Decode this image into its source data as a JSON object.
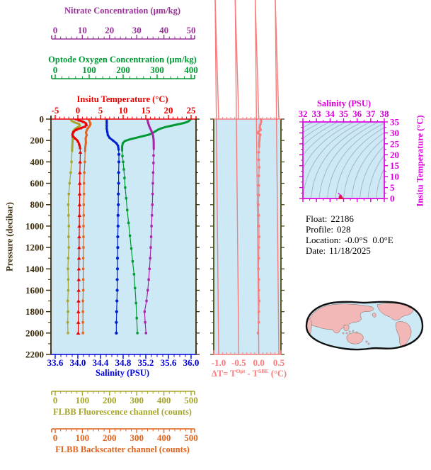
{
  "info": {
    "rows": [
      {
        "label": "Float:",
        "value": "22186"
      },
      {
        "label": "Profile:",
        "value": "028"
      },
      {
        "label": "Location:",
        "value": "-0.0°S  0.0°E"
      },
      {
        "label": "Date:",
        "value": "11/18/2025"
      }
    ]
  },
  "colors": {
    "plot_bg": "#CDE9F6",
    "frame_dark": "#3A2A08",
    "delta_side": "#4A4A10",
    "contour": "#9FB3BC",
    "map_land": "#F2B7B7",
    "map_outline": "#111111",
    "ts_marker": "#E8104C"
  },
  "chart_data": {
    "type": "line",
    "pressure_axis": {
      "label": "Pressure (decibar)",
      "min": 0,
      "max": 2200,
      "ticks": [
        0,
        200,
        400,
        600,
        800,
        1000,
        1200,
        1400,
        1600,
        1800,
        2000,
        2200
      ],
      "color": "#3A2A08"
    },
    "x_axes": [
      {
        "id": "nitrate",
        "title": "Nitrate Concentration (µm/kg)",
        "min": 0,
        "max": 50,
        "ticks": [
          0,
          10,
          20,
          30,
          40,
          50
        ],
        "tick_labels": [
          "0",
          "10",
          "20",
          "30",
          "40",
          "50"
        ],
        "minors": 4,
        "color": "#993399"
      },
      {
        "id": "oxygen",
        "title": "Optode Oxygen Concentration (µm/kg)",
        "min": 0,
        "max": 400,
        "ticks": [
          0,
          100,
          200,
          300,
          400
        ],
        "tick_labels": [
          "0",
          "100",
          "200",
          "300",
          "400"
        ],
        "minors": 4,
        "color": "#009933"
      },
      {
        "id": "temperature",
        "title": "Insitu Temperature (°C)",
        "min": -5,
        "max": 25,
        "ticks": [
          -5,
          0,
          5,
          10,
          15,
          20,
          25
        ],
        "tick_labels": [
          "-5",
          "0",
          "5",
          "10",
          "15",
          "20",
          "25"
        ],
        "minors": 4,
        "color": "#EE0000"
      },
      {
        "id": "salinity",
        "title": "Salinity (PSU)",
        "min": 33.6,
        "max": 36.0,
        "ticks": [
          33.6,
          34.0,
          34.4,
          34.8,
          35.2,
          35.6,
          36.0
        ],
        "tick_labels": [
          "33.6",
          "34.0",
          "34.4",
          "34.8",
          "35.2",
          "35.6",
          "36.0"
        ],
        "minors": 3,
        "color": "#0000DD"
      },
      {
        "id": "fluorescence",
        "title": "FLBB Fluorescence channel (counts)",
        "min": 0,
        "max": 500,
        "ticks": [
          0,
          100,
          200,
          300,
          400,
          500
        ],
        "tick_labels": [
          "0",
          "100",
          "200",
          "300",
          "400",
          "500"
        ],
        "minors": 4,
        "color": "#A5A52A"
      },
      {
        "id": "backscatter",
        "title": "FLBB Backscatter channel (counts)",
        "min": 0,
        "max": 500,
        "ticks": [
          0,
          100,
          200,
          300,
          400,
          500
        ],
        "tick_labels": [
          "0",
          "100",
          "200",
          "300",
          "400",
          "500"
        ],
        "minors": 4,
        "color": "#E2641E"
      }
    ],
    "series": [
      {
        "id": "fluorescence",
        "axis": "fluorescence",
        "color": "#A5A52A",
        "marker": "square",
        "units": "counts",
        "points": [
          [
            57,
            0
          ],
          [
            60,
            15
          ],
          [
            70,
            30
          ],
          [
            88,
            45
          ],
          [
            91,
            60
          ],
          [
            83,
            75
          ],
          [
            72,
            95
          ],
          [
            66,
            115
          ],
          [
            64,
            150
          ],
          [
            64,
            200
          ],
          [
            63,
            250
          ],
          [
            62,
            300
          ],
          [
            60,
            400
          ],
          [
            57,
            500
          ],
          [
            53,
            600
          ],
          [
            50,
            700
          ],
          [
            48,
            800
          ],
          [
            49,
            900
          ],
          [
            50,
            1000
          ],
          [
            49,
            1100
          ],
          [
            50,
            1200
          ],
          [
            48,
            1300
          ],
          [
            47,
            1400
          ],
          [
            48,
            1500
          ],
          [
            48,
            1600
          ],
          [
            46,
            1700
          ],
          [
            47,
            1800
          ],
          [
            46,
            1900
          ],
          [
            47,
            2000
          ]
        ]
      },
      {
        "id": "backscatter",
        "axis": "backscatter",
        "color": "#E2641E",
        "marker": "square",
        "units": "counts",
        "points": [
          [
            122,
            0
          ],
          [
            126,
            20
          ],
          [
            130,
            40
          ],
          [
            128,
            60
          ],
          [
            122,
            80
          ],
          [
            117,
            100
          ],
          [
            113,
            125
          ],
          [
            116,
            150
          ],
          [
            112,
            180
          ],
          [
            113,
            220
          ],
          [
            111,
            260
          ],
          [
            110,
            300
          ],
          [
            109,
            400
          ],
          [
            107,
            500
          ],
          [
            106,
            600
          ],
          [
            106,
            700
          ],
          [
            105,
            800
          ],
          [
            105,
            900
          ],
          [
            104,
            1000
          ],
          [
            104,
            1100
          ],
          [
            104,
            1200
          ],
          [
            103,
            1300
          ],
          [
            103,
            1400
          ],
          [
            103,
            1500
          ],
          [
            103,
            1600
          ],
          [
            102,
            1700
          ],
          [
            102,
            1800
          ],
          [
            102,
            1900
          ],
          [
            102,
            2000
          ]
        ]
      },
      {
        "id": "temperature",
        "axis": "temperature",
        "color": "#EE0000",
        "marker": "triangle",
        "units": "degC",
        "points": [
          [
            -0.4,
            0
          ],
          [
            0.3,
            12
          ],
          [
            1.2,
            25
          ],
          [
            1.8,
            40
          ],
          [
            1.9,
            55
          ],
          [
            1.6,
            70
          ],
          [
            0.6,
            85
          ],
          [
            -0.4,
            100
          ],
          [
            -1.0,
            120
          ],
          [
            -1.2,
            140
          ],
          [
            -1.1,
            160
          ],
          [
            -0.6,
            180
          ],
          [
            0.0,
            205
          ],
          [
            0.3,
            235
          ],
          [
            0.5,
            270
          ],
          [
            0.55,
            310
          ],
          [
            0.5,
            400
          ],
          [
            0.45,
            500
          ],
          [
            0.42,
            600
          ],
          [
            0.4,
            700
          ],
          [
            0.38,
            800
          ],
          [
            0.35,
            900
          ],
          [
            0.33,
            1000
          ],
          [
            0.3,
            1100
          ],
          [
            0.28,
            1200
          ],
          [
            0.25,
            1300
          ],
          [
            0.22,
            1400
          ],
          [
            0.2,
            1500
          ],
          [
            0.18,
            1600
          ],
          [
            0.15,
            1700
          ],
          [
            0.12,
            1800
          ],
          [
            0.1,
            1900
          ],
          [
            0.08,
            2000
          ]
        ]
      },
      {
        "id": "salinity",
        "axis": "salinity",
        "color": "#0022CC",
        "marker": "circle",
        "units": "PSU",
        "points": [
          [
            34.51,
            0
          ],
          [
            34.51,
            30
          ],
          [
            34.51,
            60
          ],
          [
            34.51,
            90
          ],
          [
            34.52,
            120
          ],
          [
            34.53,
            150
          ],
          [
            34.56,
            175
          ],
          [
            34.62,
            200
          ],
          [
            34.68,
            225
          ],
          [
            34.71,
            250
          ],
          [
            34.72,
            285
          ],
          [
            34.725,
            330
          ],
          [
            34.725,
            400
          ],
          [
            34.72,
            500
          ],
          [
            34.72,
            600
          ],
          [
            34.715,
            700
          ],
          [
            34.715,
            800
          ],
          [
            34.71,
            900
          ],
          [
            34.71,
            1000
          ],
          [
            34.705,
            1100
          ],
          [
            34.705,
            1200
          ],
          [
            34.7,
            1300
          ],
          [
            34.7,
            1400
          ],
          [
            34.695,
            1500
          ],
          [
            34.695,
            1600
          ],
          [
            34.69,
            1700
          ],
          [
            34.685,
            1800
          ],
          [
            34.68,
            1900
          ],
          [
            34.68,
            2000
          ]
        ]
      },
      {
        "id": "oxygen",
        "axis": "oxygen",
        "color": "#009933",
        "marker": "square",
        "units": "umol/kg",
        "points": [
          [
            398,
            0
          ],
          [
            396,
            12
          ],
          [
            390,
            25
          ],
          [
            378,
            38
          ],
          [
            360,
            50
          ],
          [
            342,
            62
          ],
          [
            325,
            74
          ],
          [
            312,
            86
          ],
          [
            303,
            98
          ],
          [
            296,
            112
          ],
          [
            288,
            128
          ],
          [
            276,
            145
          ],
          [
            258,
            160
          ],
          [
            238,
            175
          ],
          [
            219,
            190
          ],
          [
            205,
            205
          ],
          [
            199,
            225
          ],
          [
            197,
            255
          ],
          [
            197,
            295
          ],
          [
            198,
            345
          ],
          [
            200,
            400
          ],
          [
            202,
            470
          ],
          [
            204,
            550
          ],
          [
            206,
            640
          ],
          [
            209,
            740
          ],
          [
            212,
            850
          ],
          [
            216,
            970
          ],
          [
            220,
            1090
          ],
          [
            224,
            1210
          ],
          [
            228,
            1330
          ],
          [
            232,
            1450
          ],
          [
            235,
            1580
          ],
          [
            238,
            1720
          ],
          [
            240,
            1860
          ],
          [
            242,
            2000
          ]
        ]
      },
      {
        "id": "nitrate",
        "axis": "nitrate",
        "color": "#AA22AA",
        "marker": "square",
        "units": "umol/kg",
        "points": [
          [
            33.9,
            0
          ],
          [
            34.0,
            15
          ],
          [
            34.2,
            35
          ],
          [
            34.5,
            60
          ],
          [
            34.9,
            85
          ],
          [
            35.4,
            110
          ],
          [
            35.8,
            135
          ],
          [
            36.05,
            160
          ],
          [
            36.2,
            190
          ],
          [
            36.25,
            230
          ],
          [
            36.25,
            280
          ],
          [
            36.2,
            340
          ],
          [
            36.15,
            410
          ],
          [
            36.05,
            500
          ],
          [
            35.95,
            600
          ],
          [
            35.85,
            700
          ],
          [
            35.75,
            800
          ],
          [
            35.6,
            900
          ],
          [
            35.45,
            1000
          ],
          [
            35.3,
            1100
          ],
          [
            35.15,
            1200
          ],
          [
            34.95,
            1300
          ],
          [
            34.7,
            1400
          ],
          [
            34.4,
            1500
          ],
          [
            34.05,
            1600
          ],
          [
            33.6,
            1700
          ],
          [
            32.9,
            1800
          ],
          [
            33.1,
            1900
          ],
          [
            33.4,
            2000
          ]
        ]
      }
    ],
    "delta_panel": {
      "title": {
        "pre": "ΔT= T",
        "sup1": "Opt",
        "mid": " - T",
        "sup2": "SBE",
        "post": " (°C)"
      },
      "min": -1.0,
      "max": 0.5,
      "ticks": [
        -1.0,
        -0.5,
        0.0,
        0.5
      ],
      "tick_labels": [
        "-1.0",
        "-0.5",
        "0.0",
        "0.5"
      ],
      "minors": 4,
      "color": "#F87C7C",
      "series": {
        "id": "delta_t",
        "color": "#F87C7C",
        "marker_color": "#EE6A6A",
        "units": "degC",
        "points": [
          [
            0.05,
            0
          ],
          [
            0.06,
            20
          ],
          [
            0.05,
            40
          ],
          [
            0.03,
            60
          ],
          [
            0.02,
            80
          ],
          [
            0.05,
            100
          ],
          [
            0.0,
            115
          ],
          [
            -0.03,
            130
          ],
          [
            0.04,
            145
          ],
          [
            0.02,
            165
          ],
          [
            0.02,
            190
          ],
          [
            0.01,
            220
          ],
          [
            0.01,
            260
          ],
          [
            0.0,
            310
          ],
          [
            0.0,
            380
          ],
          [
            0.01,
            450
          ],
          [
            0.0,
            530
          ],
          [
            0.0,
            620
          ],
          [
            0.0,
            710
          ],
          [
            -0.01,
            800
          ],
          [
            0.0,
            900
          ],
          [
            0.0,
            1000
          ],
          [
            0.01,
            1100
          ],
          [
            0.0,
            1200
          ],
          [
            0.0,
            1300
          ],
          [
            -0.01,
            1400
          ],
          [
            0.0,
            1500
          ],
          [
            0.0,
            1600
          ],
          [
            0.01,
            1700
          ],
          [
            0.0,
            1800
          ],
          [
            0.0,
            1900
          ],
          [
            -0.02,
            2000
          ]
        ]
      }
    },
    "ts_panel": {
      "top_axis": {
        "title": "Salinity (PSU)",
        "min": 32,
        "max": 38,
        "ticks": [
          32,
          33,
          34,
          35,
          36,
          37,
          38
        ],
        "tick_labels": [
          "32",
          "33",
          "34",
          "35",
          "36",
          "37",
          "38"
        ],
        "minors": 1
      },
      "right_axis": {
        "title": "Insitu Temperature (°C)",
        "min": 0,
        "max": 35,
        "ticks": [
          0,
          5,
          10,
          15,
          20,
          25,
          30,
          35
        ],
        "tick_labels": [
          "0",
          "5",
          "10",
          "15",
          "20",
          "25",
          "30",
          "35"
        ],
        "minors": 1
      },
      "color": "#DD00DD",
      "marker": {
        "salinity": 34.8,
        "temperature": 0.5
      },
      "profile_points": [
        [
          34.68,
          0.8
        ],
        [
          34.72,
          1.6
        ],
        [
          34.65,
          2.3
        ]
      ]
    }
  }
}
